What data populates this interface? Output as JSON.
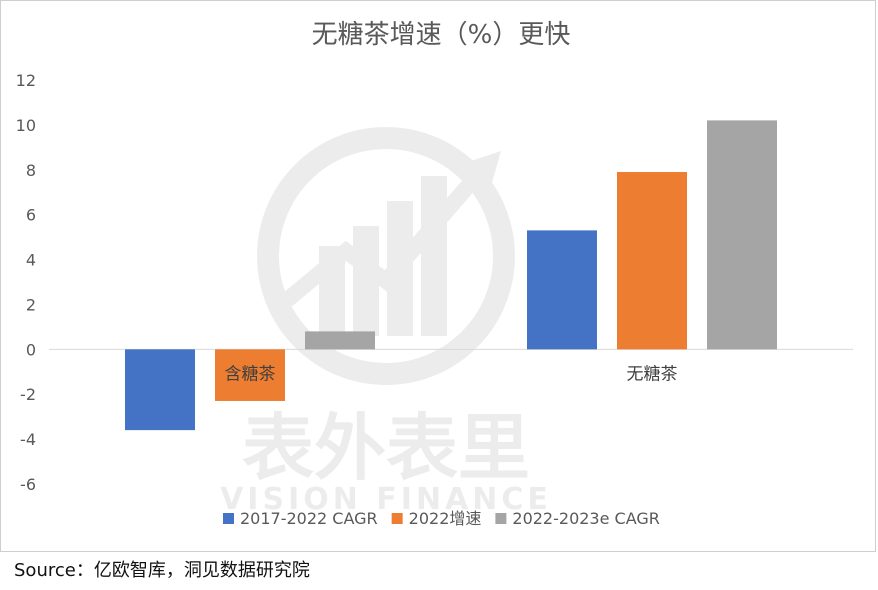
{
  "chart_data": {
    "type": "bar",
    "title": "无糖茶增速（%）更快",
    "categories": [
      "含糖茶",
      "无糖茶"
    ],
    "series": [
      {
        "name": "2017-2022 CAGR",
        "color": "#4472c4",
        "values": [
          -3.6,
          5.3
        ]
      },
      {
        "name": "2022增速",
        "color": "#ed7d31",
        "values": [
          -2.3,
          7.9
        ]
      },
      {
        "name": "2022-2023e CAGR",
        "color": "#a5a5a5",
        "values": [
          0.8,
          10.2
        ]
      }
    ],
    "ylim": [
      -6,
      12
    ],
    "yticks": [
      12,
      10,
      8,
      6,
      4,
      2,
      0,
      -2,
      -4,
      -6
    ],
    "xlabel": "",
    "ylabel": "",
    "grid": false,
    "legend_position": "bottom"
  },
  "watermark": {
    "text_cn": "表外表里",
    "text_en": "VISION FINANCE"
  },
  "source": "Source：亿欧智库，洞见数据研究院"
}
